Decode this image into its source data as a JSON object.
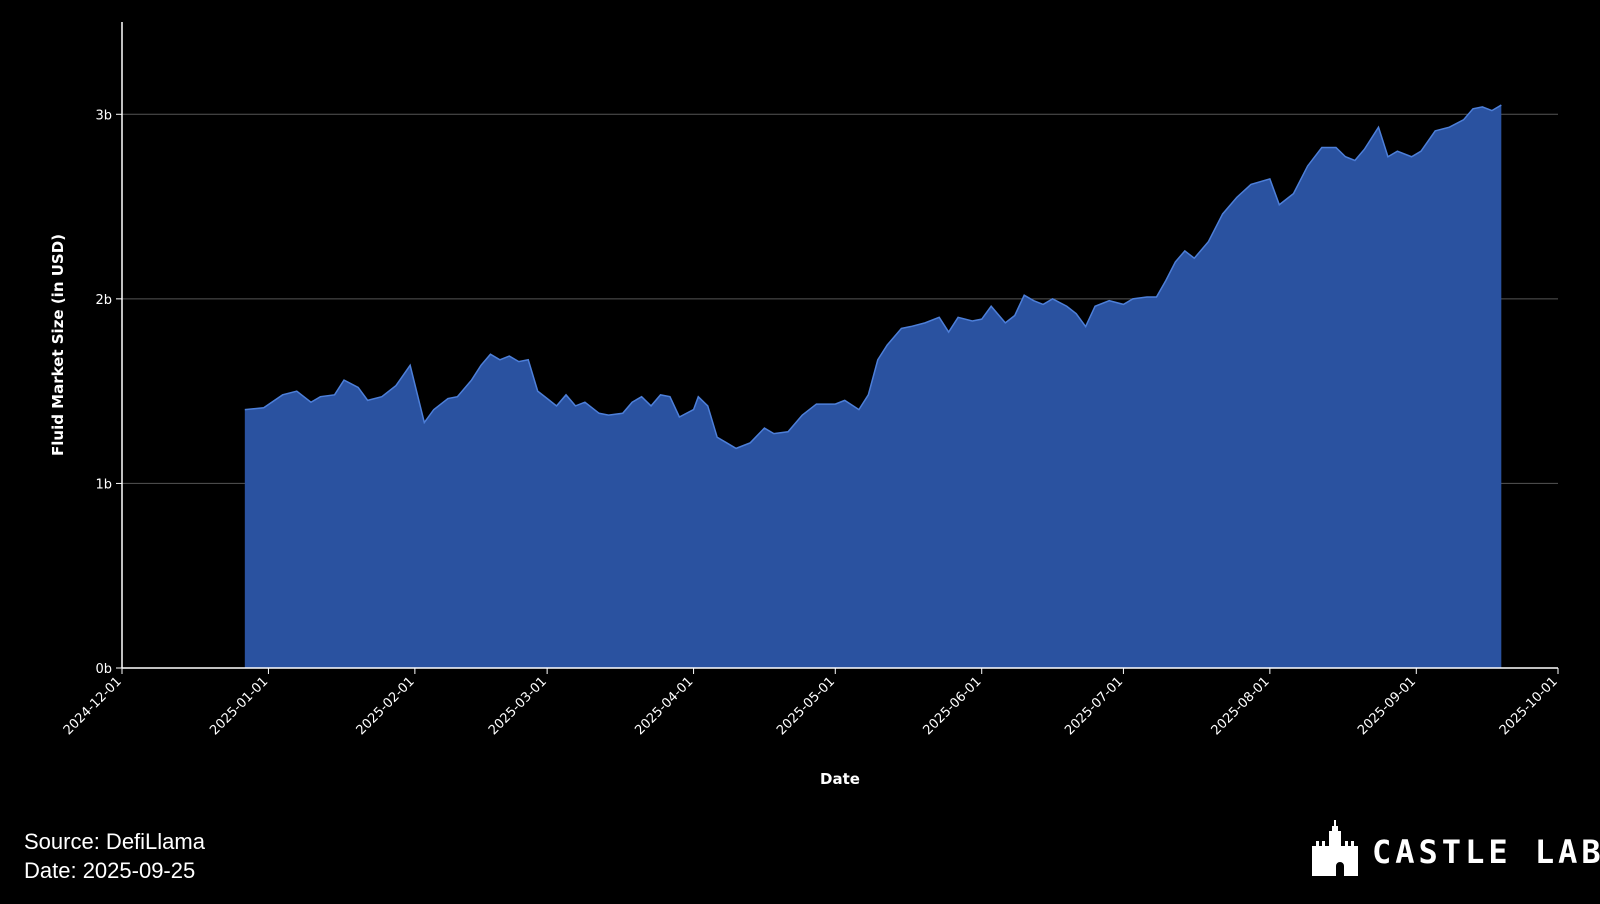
{
  "chart_data": {
    "type": "area",
    "ylabel": "Fluid Market Size (in USD)",
    "xlabel": "Date",
    "x": [
      "2024-12-27",
      "2024-12-31",
      "2025-01-04",
      "2025-01-07",
      "2025-01-10",
      "2025-01-12",
      "2025-01-15",
      "2025-01-17",
      "2025-01-20",
      "2025-01-22",
      "2025-01-25",
      "2025-01-28",
      "2025-01-31",
      "2025-02-03",
      "2025-02-05",
      "2025-02-08",
      "2025-02-10",
      "2025-02-13",
      "2025-02-15",
      "2025-02-17",
      "2025-02-19",
      "2025-02-21",
      "2025-02-23",
      "2025-02-25",
      "2025-02-27",
      "2025-03-01",
      "2025-03-03",
      "2025-03-05",
      "2025-03-07",
      "2025-03-09",
      "2025-03-12",
      "2025-03-14",
      "2025-03-17",
      "2025-03-19",
      "2025-03-21",
      "2025-03-23",
      "2025-03-25",
      "2025-03-27",
      "2025-03-29",
      "2025-04-01",
      "2025-04-02",
      "2025-04-04",
      "2025-04-06",
      "2025-04-08",
      "2025-04-10",
      "2025-04-13",
      "2025-04-16",
      "2025-04-18",
      "2025-04-21",
      "2025-04-24",
      "2025-04-27",
      "2025-05-01",
      "2025-05-03",
      "2025-05-06",
      "2025-05-08",
      "2025-05-10",
      "2025-05-12",
      "2025-05-15",
      "2025-05-17",
      "2025-05-20",
      "2025-05-23",
      "2025-05-25",
      "2025-05-27",
      "2025-05-30",
      "2025-06-01",
      "2025-06-03",
      "2025-06-06",
      "2025-06-08",
      "2025-06-10",
      "2025-06-12",
      "2025-06-14",
      "2025-06-16",
      "2025-06-19",
      "2025-06-21",
      "2025-06-23",
      "2025-06-25",
      "2025-06-28",
      "2025-07-01",
      "2025-07-03",
      "2025-07-06",
      "2025-07-08",
      "2025-07-10",
      "2025-07-12",
      "2025-07-14",
      "2025-07-16",
      "2025-07-19",
      "2025-07-22",
      "2025-07-25",
      "2025-07-28",
      "2025-08-01",
      "2025-08-03",
      "2025-08-06",
      "2025-08-09",
      "2025-08-12",
      "2025-08-15",
      "2025-08-17",
      "2025-08-19",
      "2025-08-21",
      "2025-08-24",
      "2025-08-26",
      "2025-08-28",
      "2025-08-31",
      "2025-09-02",
      "2025-09-05",
      "2025-09-08",
      "2025-09-11",
      "2025-09-13",
      "2025-09-15",
      "2025-09-17",
      "2025-09-19"
    ],
    "series": [
      {
        "color": "#2a52a0",
        "values": [
          1.4,
          1.41,
          1.48,
          1.5,
          1.44,
          1.47,
          1.48,
          1.56,
          1.52,
          1.45,
          1.47,
          1.53,
          1.64,
          1.33,
          1.4,
          1.46,
          1.47,
          1.56,
          1.64,
          1.7,
          1.67,
          1.69,
          1.66,
          1.67,
          1.5,
          1.46,
          1.42,
          1.48,
          1.42,
          1.44,
          1.38,
          1.37,
          1.38,
          1.44,
          1.47,
          1.42,
          1.48,
          1.47,
          1.36,
          1.4,
          1.47,
          1.42,
          1.25,
          1.22,
          1.19,
          1.22,
          1.3,
          1.27,
          1.28,
          1.37,
          1.43,
          1.43,
          1.45,
          1.4,
          1.48,
          1.67,
          1.75,
          1.84,
          1.85,
          1.87,
          1.9,
          1.82,
          1.9,
          1.88,
          1.89,
          1.96,
          1.87,
          1.91,
          2.02,
          1.99,
          1.97,
          2.0,
          1.96,
          1.92,
          1.85,
          1.96,
          1.99,
          1.97,
          2.0,
          2.01,
          2.01,
          2.1,
          2.2,
          2.26,
          2.22,
          2.31,
          2.46,
          2.55,
          2.62,
          2.65,
          2.51,
          2.57,
          2.72,
          2.82,
          2.82,
          2.77,
          2.75,
          2.81,
          2.93,
          2.77,
          2.8,
          2.77,
          2.8,
          2.91,
          2.93,
          2.97,
          3.03,
          3.04,
          3.02,
          3.05
        ]
      }
    ],
    "xlim": [
      "2024-12-01",
      "2025-10-01"
    ],
    "xticks": [
      "2024-12-01",
      "2025-01-01",
      "2025-02-01",
      "2025-03-01",
      "2025-04-01",
      "2025-05-01",
      "2025-06-01",
      "2025-07-01",
      "2025-08-01",
      "2025-09-01",
      "2025-10-01"
    ],
    "ylim": [
      0,
      3.5
    ],
    "yticks": [
      {
        "value": 0,
        "label": "0b"
      },
      {
        "value": 1,
        "label": "1b"
      },
      {
        "value": 2,
        "label": "2b"
      },
      {
        "value": 3,
        "label": "3b"
      }
    ],
    "grid": true
  },
  "footer": {
    "source": "Source: DefiLlama",
    "date": "Date: 2025-09-25",
    "brand": "CASTLE LABS"
  }
}
